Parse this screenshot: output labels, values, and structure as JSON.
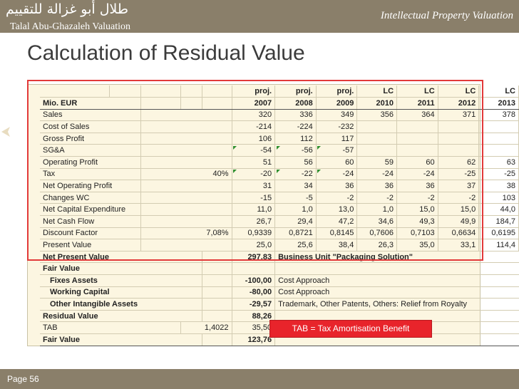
{
  "header": {
    "arabic_title": "طلال أبو غزالة للتقييم",
    "company": "Talal Abu-Ghazaleh Valuation",
    "section": "Intellectual Property Valuation"
  },
  "title": "Calculation of Residual Value",
  "table": {
    "header1": [
      "proj.",
      "proj.",
      "proj.",
      "LC",
      "LC",
      "LC",
      "LC"
    ],
    "unit_label": "Mio. EUR",
    "years": [
      "2007",
      "2008",
      "2009",
      "2010",
      "2011",
      "2012",
      "2013"
    ],
    "rows": [
      {
        "label": "Sales",
        "param": "",
        "vals": [
          "320",
          "336",
          "349",
          "356",
          "364",
          "371",
          "378"
        ]
      },
      {
        "label": "Cost of Sales",
        "param": "",
        "vals": [
          "-214",
          "-224",
          "-232",
          "",
          "",
          "",
          ""
        ]
      },
      {
        "label": "Gross Profit",
        "param": "",
        "vals": [
          "106",
          "112",
          "117",
          "",
          "",
          "",
          ""
        ]
      },
      {
        "label": "SG&A",
        "param": "",
        "vals": [
          "-54",
          "-56",
          "-57",
          "",
          "",
          "",
          ""
        ]
      },
      {
        "label": "Operating Profit",
        "param": "",
        "vals": [
          "51",
          "56",
          "60",
          "59",
          "60",
          "62",
          "63"
        ]
      },
      {
        "label": "Tax",
        "param": "40%",
        "vals": [
          "-20",
          "-22",
          "-24",
          "-24",
          "-24",
          "-25",
          "-25"
        ]
      },
      {
        "label": "Net Operating Profit",
        "param": "",
        "vals": [
          "31",
          "34",
          "36",
          "36",
          "36",
          "37",
          "38"
        ]
      },
      {
        "label": "Changes WC",
        "param": "",
        "vals": [
          "-15",
          "-5",
          "-2",
          "-2",
          "-2",
          "-2",
          "103"
        ]
      },
      {
        "label": "Net Capital Expenditure",
        "param": "",
        "vals": [
          "11,0",
          "1,0",
          "13,0",
          "1,0",
          "15,0",
          "15,0",
          "44,0"
        ]
      },
      {
        "label": "Net Cash Flow",
        "param": "",
        "vals": [
          "26,7",
          "29,4",
          "47,2",
          "34,6",
          "49,3",
          "49,9",
          "184,7"
        ]
      },
      {
        "label": "Discount Factor",
        "param": "7,08%",
        "vals": [
          "0,9339",
          "0,8721",
          "0,8145",
          "0,7606",
          "0,7103",
          "0,6634",
          "0,6195"
        ]
      },
      {
        "label": "Present Value",
        "param": "",
        "vals": [
          "25,0",
          "25,6",
          "38,4",
          "26,3",
          "35,0",
          "33,1",
          "114,4"
        ]
      }
    ],
    "npv": {
      "label": "Net Present Value",
      "value": "297,83",
      "note": "Business Unit \"Packaging Solution\""
    },
    "fair_value_header": "Fair Value",
    "components": [
      {
        "label": "Fixes Assets",
        "value": "-100,00",
        "note": "Cost Approach"
      },
      {
        "label": "Working Capital",
        "value": "-80,00",
        "note": "Cost Approach"
      },
      {
        "label": "Other Intangible Assets",
        "value": "-29,57",
        "note": "Trademark, Other Patents, Others: Relief from Royalty"
      }
    ],
    "residual": {
      "label": "Residual Value",
      "value": "88,26"
    },
    "tab_row": {
      "label": "TAB",
      "param": "1,4022",
      "value": "35,50"
    },
    "fair_value": {
      "label": "Fair Value",
      "value": "123,76"
    }
  },
  "tab_note": "TAB = Tax Amortisation Benefit",
  "footer": {
    "page": "Page 56"
  },
  "colors": {
    "header_bg": "#8a7f6a",
    "table_bg": "#fcf6e1",
    "highlight": "#e23a3a",
    "note_box": "#e8242b"
  }
}
